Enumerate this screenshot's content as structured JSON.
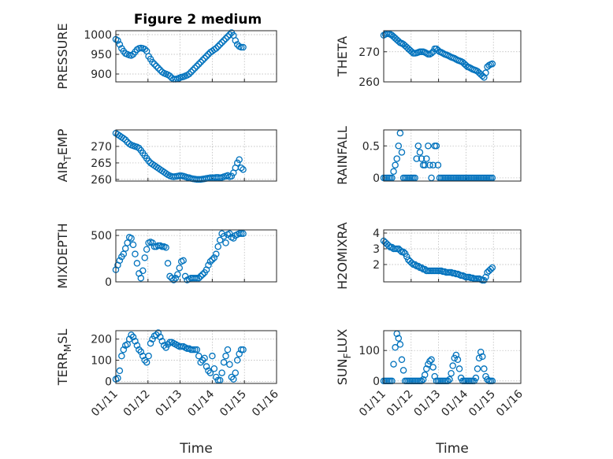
{
  "figure_title": "Figure 2 medium",
  "colors": {
    "marker": "#0072bd",
    "axis": "#262626",
    "grid": "#b3b3b3"
  },
  "chart_data": [
    {
      "type": "scatter",
      "ylabel_parts": [
        "PRESSURE"
      ],
      "xlabel": "",
      "ylim": [
        880,
        1010
      ],
      "yticks": [
        900,
        950,
        1000
      ],
      "xlim": [
        0,
        5
      ],
      "xticks": [
        "01/11",
        "01/12",
        "01/13",
        "01/14",
        "01/15",
        "01/16"
      ],
      "show_xticklabels": false,
      "x": [
        0.0,
        0.06,
        0.12,
        0.18,
        0.24,
        0.3,
        0.36,
        0.42,
        0.48,
        0.54,
        0.6,
        0.66,
        0.72,
        0.78,
        0.84,
        0.9,
        0.96,
        1.02,
        1.08,
        1.14,
        1.2,
        1.26,
        1.32,
        1.38,
        1.44,
        1.5,
        1.56,
        1.62,
        1.68,
        1.74,
        1.8,
        1.86,
        1.92,
        1.98,
        2.04,
        2.1,
        2.16,
        2.22,
        2.28,
        2.34,
        2.4,
        2.46,
        2.52,
        2.58,
        2.64,
        2.7,
        2.76,
        2.82,
        2.88,
        2.94,
        3.0,
        3.06,
        3.12,
        3.18,
        3.24,
        3.3,
        3.36,
        3.42,
        3.48,
        3.54,
        3.6,
        3.66,
        3.72,
        3.78,
        3.84,
        3.9,
        3.96
      ],
      "y": [
        988,
        985,
        975,
        965,
        958,
        952,
        950,
        948,
        947,
        950,
        956,
        962,
        965,
        966,
        965,
        963,
        958,
        945,
        938,
        930,
        925,
        920,
        915,
        910,
        905,
        902,
        900,
        898,
        895,
        890,
        887,
        887,
        888,
        890,
        892,
        893,
        895,
        897,
        900,
        905,
        910,
        915,
        920,
        925,
        930,
        935,
        940,
        945,
        950,
        955,
        958,
        962,
        965,
        970,
        975,
        980,
        985,
        990,
        995,
        1000,
        1005,
        998,
        985,
        975,
        970,
        968,
        968
      ]
    },
    {
      "type": "scatter",
      "ylabel_parts": [
        "THETA"
      ],
      "xlabel": "",
      "ylim": [
        260,
        277
      ],
      "yticks": [
        260,
        270
      ],
      "xlim": [
        0,
        5
      ],
      "xticks": [
        "01/11",
        "01/12",
        "01/13",
        "01/14",
        "01/15",
        "01/16"
      ],
      "show_xticklabels": false,
      "x": [
        0.0,
        0.06,
        0.12,
        0.18,
        0.24,
        0.3,
        0.36,
        0.42,
        0.48,
        0.54,
        0.6,
        0.66,
        0.72,
        0.78,
        0.84,
        0.9,
        0.96,
        1.02,
        1.08,
        1.14,
        1.2,
        1.26,
        1.32,
        1.38,
        1.44,
        1.5,
        1.56,
        1.62,
        1.68,
        1.74,
        1.8,
        1.86,
        1.92,
        1.98,
        2.04,
        2.1,
        2.16,
        2.22,
        2.28,
        2.34,
        2.4,
        2.46,
        2.52,
        2.58,
        2.64,
        2.7,
        2.76,
        2.82,
        2.88,
        2.94,
        3.0,
        3.06,
        3.12,
        3.18,
        3.24,
        3.3,
        3.36,
        3.42,
        3.48,
        3.54,
        3.6,
        3.66,
        3.72,
        3.78,
        3.84,
        3.9,
        3.96
      ],
      "y": [
        275.5,
        275.8,
        276,
        276,
        275.8,
        275.5,
        275,
        274.5,
        274,
        273.5,
        273,
        272.8,
        272.5,
        272,
        271.5,
        271,
        270.5,
        270,
        269.5,
        269.5,
        269.6,
        269.8,
        270,
        270,
        270,
        269.8,
        269.5,
        269.2,
        269.2,
        269.5,
        270,
        271,
        271,
        270.5,
        270,
        269.8,
        269.5,
        269.2,
        269,
        268.8,
        268.5,
        268.2,
        268,
        267.8,
        267.5,
        267.2,
        267,
        266.8,
        266.5,
        266,
        265.5,
        265,
        264.8,
        264.5,
        264.2,
        264,
        263.8,
        263.5,
        263,
        262.5,
        262,
        261.5,
        263,
        265,
        265.5,
        265.8,
        266
      ]
    },
    {
      "type": "scatter",
      "ylabel_parts": [
        "AIR",
        "T",
        "EMP"
      ],
      "xlabel": "",
      "ylim": [
        259.5,
        275
      ],
      "yticks": [
        260,
        265,
        270
      ],
      "xlim": [
        0,
        5
      ],
      "xticks": [
        "01/11",
        "01/12",
        "01/13",
        "01/14",
        "01/15",
        "01/16"
      ],
      "show_xticklabels": false,
      "x": [
        0.0,
        0.06,
        0.12,
        0.18,
        0.24,
        0.3,
        0.36,
        0.42,
        0.48,
        0.54,
        0.6,
        0.66,
        0.72,
        0.78,
        0.84,
        0.9,
        0.96,
        1.02,
        1.08,
        1.14,
        1.2,
        1.26,
        1.32,
        1.38,
        1.44,
        1.5,
        1.56,
        1.62,
        1.68,
        1.74,
        1.8,
        1.86,
        1.92,
        1.98,
        2.04,
        2.1,
        2.16,
        2.22,
        2.28,
        2.34,
        2.4,
        2.46,
        2.52,
        2.58,
        2.64,
        2.7,
        2.76,
        2.82,
        2.88,
        2.94,
        3.0,
        3.06,
        3.12,
        3.18,
        3.24,
        3.3,
        3.36,
        3.42,
        3.48,
        3.54,
        3.6,
        3.66,
        3.72,
        3.78,
        3.84,
        3.9,
        3.96
      ],
      "y": [
        274,
        273.6,
        273.2,
        272.8,
        272.4,
        272,
        271.3,
        270.8,
        270.4,
        270.2,
        270,
        269.8,
        269.5,
        268.8,
        268,
        267.2,
        266.4,
        265.6,
        265,
        264.6,
        264.2,
        263.8,
        263.4,
        263,
        262.6,
        262.2,
        261.8,
        261.4,
        261.1,
        260.9,
        260.8,
        260.9,
        261,
        261.1,
        261.1,
        261,
        260.8,
        260.6,
        260.5,
        260.3,
        260.2,
        260.1,
        260,
        260,
        260,
        260.1,
        260.2,
        260.3,
        260.4,
        260.5,
        260.5,
        260.5,
        260.6,
        260.6,
        260.5,
        260.6,
        260.8,
        261,
        261.2,
        260.8,
        261,
        262,
        263.5,
        265,
        266,
        263.5,
        263
      ]
    },
    {
      "type": "scatter",
      "ylabel_parts": [
        "RAINFALL"
      ],
      "xlabel": "",
      "ylim": [
        -0.05,
        0.75
      ],
      "yticks": [
        0,
        0.5
      ],
      "xlim": [
        0,
        5
      ],
      "xticks": [
        "01/11",
        "01/12",
        "01/13",
        "01/14",
        "01/15",
        "01/16"
      ],
      "show_xticklabels": false,
      "x": [
        0.0,
        0.06,
        0.12,
        0.18,
        0.24,
        0.3,
        0.36,
        0.42,
        0.48,
        0.54,
        0.6,
        0.66,
        0.72,
        0.78,
        0.84,
        0.9,
        0.96,
        1.02,
        1.08,
        1.14,
        1.2,
        1.26,
        1.32,
        1.38,
        1.44,
        1.5,
        1.56,
        1.62,
        1.68,
        1.74,
        1.8,
        1.86,
        1.92,
        1.98,
        2.04,
        2.1,
        2.16,
        2.22,
        2.28,
        2.34,
        2.4,
        2.46,
        2.52,
        2.58,
        2.64,
        2.7,
        2.76,
        2.82,
        2.88,
        2.94,
        3.0,
        3.06,
        3.12,
        3.18,
        3.24,
        3.3,
        3.36,
        3.42,
        3.48,
        3.54,
        3.6,
        3.66,
        3.72,
        3.78,
        3.84,
        3.9,
        3.96
      ],
      "y": [
        0,
        0,
        0,
        0,
        0,
        0,
        0.1,
        0.2,
        0.3,
        0.5,
        0.7,
        0.4,
        0,
        0,
        0,
        0,
        0,
        0,
        0,
        0,
        0.3,
        0.5,
        0.4,
        0.3,
        0.2,
        0.2,
        0.3,
        0.5,
        0.2,
        0,
        0.2,
        0.5,
        0.5,
        0.2,
        0,
        0,
        0,
        0,
        0,
        0,
        0,
        0,
        0,
        0,
        0,
        0,
        0,
        0,
        0,
        0,
        0,
        0,
        0,
        0,
        0,
        0,
        0,
        0,
        0,
        0,
        0,
        0,
        0,
        0,
        0,
        0,
        0
      ]
    },
    {
      "type": "scatter",
      "ylabel_parts": [
        "MIXDEPTH"
      ],
      "xlabel": "",
      "ylim": [
        0,
        560
      ],
      "yticks": [
        0,
        500
      ],
      "xlim": [
        0,
        5
      ],
      "xticks": [
        "01/11",
        "01/12",
        "01/13",
        "01/14",
        "01/15",
        "01/16"
      ],
      "show_xticklabels": false,
      "x": [
        0.0,
        0.06,
        0.12,
        0.18,
        0.24,
        0.3,
        0.36,
        0.42,
        0.48,
        0.54,
        0.6,
        0.66,
        0.72,
        0.78,
        0.84,
        0.9,
        0.96,
        1.02,
        1.08,
        1.14,
        1.2,
        1.26,
        1.32,
        1.38,
        1.44,
        1.5,
        1.56,
        1.62,
        1.68,
        1.74,
        1.8,
        1.86,
        1.92,
        1.98,
        2.04,
        2.1,
        2.16,
        2.22,
        2.28,
        2.34,
        2.4,
        2.46,
        2.52,
        2.58,
        2.64,
        2.7,
        2.76,
        2.82,
        2.88,
        2.94,
        3.0,
        3.06,
        3.12,
        3.18,
        3.24,
        3.3,
        3.36,
        3.42,
        3.48,
        3.54,
        3.6,
        3.66,
        3.72,
        3.78,
        3.84,
        3.9,
        3.96
      ],
      "y": [
        130,
        180,
        230,
        270,
        300,
        360,
        420,
        480,
        470,
        400,
        300,
        200,
        90,
        40,
        120,
        260,
        350,
        420,
        430,
        420,
        380,
        380,
        390,
        390,
        380,
        380,
        370,
        200,
        60,
        40,
        20,
        40,
        80,
        150,
        220,
        230,
        60,
        20,
        30,
        40,
        40,
        40,
        40,
        40,
        60,
        80,
        100,
        130,
        180,
        220,
        240,
        260,
        300,
        380,
        450,
        520,
        490,
        420,
        510,
        520,
        480,
        470,
        500,
        510,
        520,
        520,
        520
      ]
    },
    {
      "type": "scatter",
      "ylabel_parts": [
        "H2OMIXRA"
      ],
      "xlabel": "",
      "ylim": [
        0.9,
        4.2
      ],
      "yticks": [
        2,
        3,
        4
      ],
      "xlim": [
        0,
        5
      ],
      "xticks": [
        "01/11",
        "01/12",
        "01/13",
        "01/14",
        "01/15",
        "01/16"
      ],
      "show_xticklabels": false,
      "x": [
        0.0,
        0.06,
        0.12,
        0.18,
        0.24,
        0.3,
        0.36,
        0.42,
        0.48,
        0.54,
        0.6,
        0.66,
        0.72,
        0.78,
        0.84,
        0.9,
        0.96,
        1.02,
        1.08,
        1.14,
        1.2,
        1.26,
        1.32,
        1.38,
        1.44,
        1.5,
        1.56,
        1.62,
        1.68,
        1.74,
        1.8,
        1.86,
        1.92,
        1.98,
        2.04,
        2.1,
        2.16,
        2.22,
        2.28,
        2.34,
        2.4,
        2.46,
        2.52,
        2.58,
        2.64,
        2.7,
        2.76,
        2.82,
        2.88,
        2.94,
        3.0,
        3.06,
        3.12,
        3.18,
        3.24,
        3.3,
        3.36,
        3.42,
        3.48,
        3.54,
        3.6,
        3.66,
        3.72,
        3.78,
        3.84,
        3.9,
        3.96
      ],
      "y": [
        3.5,
        3.4,
        3.3,
        3.2,
        3.1,
        3.1,
        3.0,
        3.0,
        3.0,
        3.0,
        2.9,
        2.8,
        2.8,
        2.7,
        2.5,
        2.3,
        2.2,
        2.1,
        2.0,
        2.0,
        1.9,
        1.9,
        1.8,
        1.8,
        1.7,
        1.7,
        1.6,
        1.6,
        1.6,
        1.6,
        1.6,
        1.6,
        1.6,
        1.6,
        1.6,
        1.6,
        1.55,
        1.55,
        1.5,
        1.5,
        1.5,
        1.5,
        1.45,
        1.45,
        1.4,
        1.4,
        1.35,
        1.3,
        1.3,
        1.25,
        1.2,
        1.2,
        1.2,
        1.15,
        1.15,
        1.1,
        1.1,
        1.1,
        1.1,
        1.05,
        1.0,
        1.0,
        1.2,
        1.5,
        1.6,
        1.7,
        1.8
      ]
    },
    {
      "type": "scatter",
      "ylabel_parts": [
        "TERR",
        "M",
        "SL"
      ],
      "xlabel": "Time",
      "ylim": [
        -10,
        240
      ],
      "yticks": [
        0,
        100,
        200
      ],
      "xlim": [
        0,
        5
      ],
      "xticks": [
        "01/11",
        "01/12",
        "01/13",
        "01/14",
        "01/15",
        "01/16"
      ],
      "show_xticklabels": true,
      "x": [
        0.0,
        0.06,
        0.12,
        0.18,
        0.24,
        0.3,
        0.36,
        0.42,
        0.48,
        0.54,
        0.6,
        0.66,
        0.72,
        0.78,
        0.84,
        0.9,
        0.96,
        1.02,
        1.08,
        1.14,
        1.2,
        1.26,
        1.32,
        1.38,
        1.44,
        1.5,
        1.56,
        1.62,
        1.68,
        1.74,
        1.8,
        1.86,
        1.92,
        1.98,
        2.04,
        2.1,
        2.16,
        2.22,
        2.28,
        2.34,
        2.4,
        2.46,
        2.52,
        2.58,
        2.64,
        2.7,
        2.76,
        2.82,
        2.88,
        2.94,
        3.0,
        3.06,
        3.12,
        3.18,
        3.24,
        3.3,
        3.36,
        3.42,
        3.48,
        3.54,
        3.6,
        3.66,
        3.72,
        3.78,
        3.84,
        3.9,
        3.96
      ],
      "y": [
        10,
        15,
        50,
        120,
        150,
        170,
        175,
        200,
        220,
        210,
        190,
        170,
        150,
        140,
        120,
        100,
        90,
        120,
        180,
        200,
        215,
        220,
        230,
        210,
        190,
        170,
        160,
        175,
        185,
        185,
        180,
        175,
        170,
        165,
        165,
        165,
        160,
        155,
        155,
        150,
        150,
        150,
        150,
        120,
        90,
        100,
        110,
        70,
        50,
        40,
        120,
        60,
        20,
        5,
        5,
        40,
        90,
        120,
        150,
        80,
        20,
        10,
        40,
        100,
        130,
        150,
        150
      ]
    },
    {
      "type": "scatter",
      "ylabel_parts": [
        "SUN",
        "F",
        "LUX"
      ],
      "xlabel": "Time",
      "ylim": [
        -8,
        165
      ],
      "yticks": [
        0,
        100
      ],
      "xlim": [
        0,
        5
      ],
      "xticks": [
        "01/11",
        "01/12",
        "01/13",
        "01/14",
        "01/15",
        "01/16"
      ],
      "show_xticklabels": true,
      "x": [
        0.0,
        0.06,
        0.12,
        0.18,
        0.24,
        0.3,
        0.36,
        0.42,
        0.48,
        0.54,
        0.6,
        0.66,
        0.72,
        0.78,
        0.84,
        0.9,
        0.96,
        1.02,
        1.08,
        1.14,
        1.2,
        1.26,
        1.32,
        1.38,
        1.44,
        1.5,
        1.56,
        1.62,
        1.68,
        1.74,
        1.8,
        1.86,
        1.92,
        1.98,
        2.04,
        2.1,
        2.16,
        2.22,
        2.28,
        2.34,
        2.4,
        2.46,
        2.52,
        2.58,
        2.64,
        2.7,
        2.76,
        2.82,
        2.88,
        2.94,
        3.0,
        3.06,
        3.12,
        3.18,
        3.24,
        3.3,
        3.36,
        3.42,
        3.48,
        3.54,
        3.6,
        3.66,
        3.72,
        3.78,
        3.84,
        3.9,
        3.96
      ],
      "y": [
        0,
        0,
        0,
        0,
        0,
        0,
        55,
        110,
        155,
        140,
        120,
        70,
        35,
        0,
        0,
        0,
        0,
        0,
        0,
        0,
        0,
        0,
        0,
        0,
        5,
        20,
        40,
        55,
        65,
        70,
        45,
        15,
        0,
        0,
        0,
        0,
        0,
        0,
        0,
        0,
        5,
        25,
        50,
        75,
        85,
        70,
        40,
        10,
        0,
        0,
        0,
        0,
        0,
        0,
        0,
        0,
        10,
        40,
        75,
        95,
        80,
        40,
        15,
        5,
        0,
        0,
        0
      ]
    }
  ]
}
